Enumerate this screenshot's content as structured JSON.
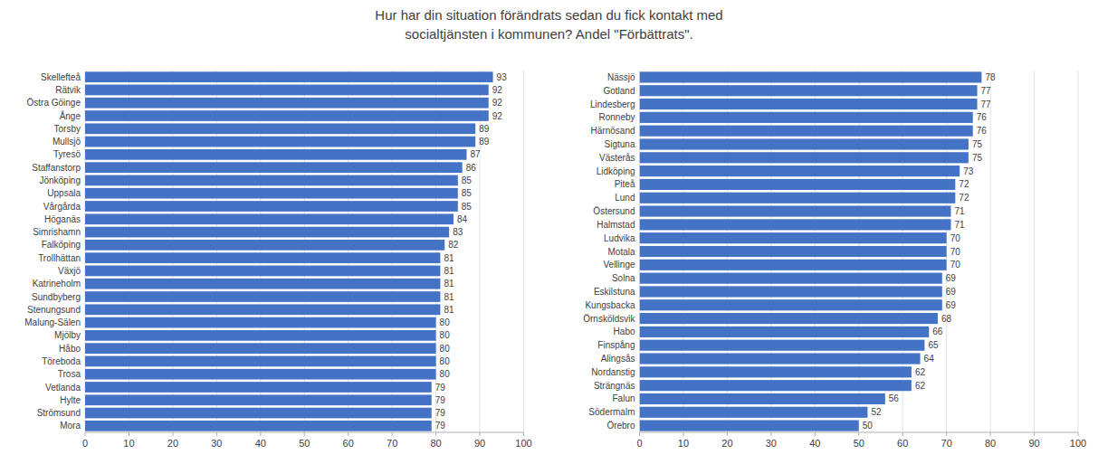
{
  "chart_data": [
    {
      "type": "bar",
      "orientation": "horizontal",
      "title": "Hur har din situation förändrats sedan du fick kontakt med\nsocialtjänsten i kommunen? Andel \"Förbättrats\".",
      "categories": [
        "Skellefteå",
        "Rätvik",
        "Östra Göinge",
        "Ånge",
        "Torsby",
        "Mullsjö",
        "Tyresö",
        "Staffanstorp",
        "Jönköping",
        "Uppsala",
        "Vårgårda",
        "Höganäs",
        "Simrishamn",
        "Falköping",
        "Trollhättan",
        "Växjö",
        "Katrineholm",
        "Sundbyberg",
        "Stenungsund",
        "Malung-Sälen",
        "Mjölby",
        "Håbo",
        "Töreboda",
        "Trosa",
        "Vetlanda",
        "Hylte",
        "Strömsund",
        "Mora"
      ],
      "values": [
        93,
        92,
        92,
        92,
        89,
        89,
        87,
        86,
        85,
        85,
        85,
        84,
        83,
        82,
        81,
        81,
        81,
        81,
        81,
        80,
        80,
        80,
        80,
        80,
        79,
        79,
        79,
        79
      ],
      "color": "#4472C4",
      "xlim": [
        0,
        100
      ],
      "xticks": [
        0,
        10,
        20,
        30,
        40,
        50,
        60,
        70,
        80,
        90,
        100
      ],
      "grid": true,
      "data_labels": true
    },
    {
      "type": "bar",
      "orientation": "horizontal",
      "categories": [
        "Nässjö",
        "Gotland",
        "Lindesberg",
        "Ronneby",
        "Härnösand",
        "Sigtuna",
        "Västerås",
        "Lidköping",
        "Piteå",
        "Lund",
        "Östersund",
        "Halmstad",
        "Ludvika",
        "Motala",
        "Vellinge",
        "Solna",
        "Eskilstuna",
        "Kungsbacka",
        "Örnsköldsvik",
        "Habo",
        "Finspång",
        "Alingsås",
        "Nordanstig",
        "Strängnäs",
        "Falun",
        "Södermalm",
        "Örebro"
      ],
      "values": [
        78,
        77,
        77,
        76,
        76,
        75,
        75,
        73,
        72,
        72,
        71,
        71,
        70,
        70,
        70,
        69,
        69,
        69,
        68,
        66,
        65,
        64,
        62,
        62,
        56,
        52,
        50
      ],
      "color": "#4472C4",
      "xlim": [
        0,
        100
      ],
      "xticks": [
        0,
        10,
        20,
        30,
        40,
        50,
        60,
        70,
        80,
        90,
        100
      ],
      "grid": true,
      "data_labels": true
    }
  ]
}
